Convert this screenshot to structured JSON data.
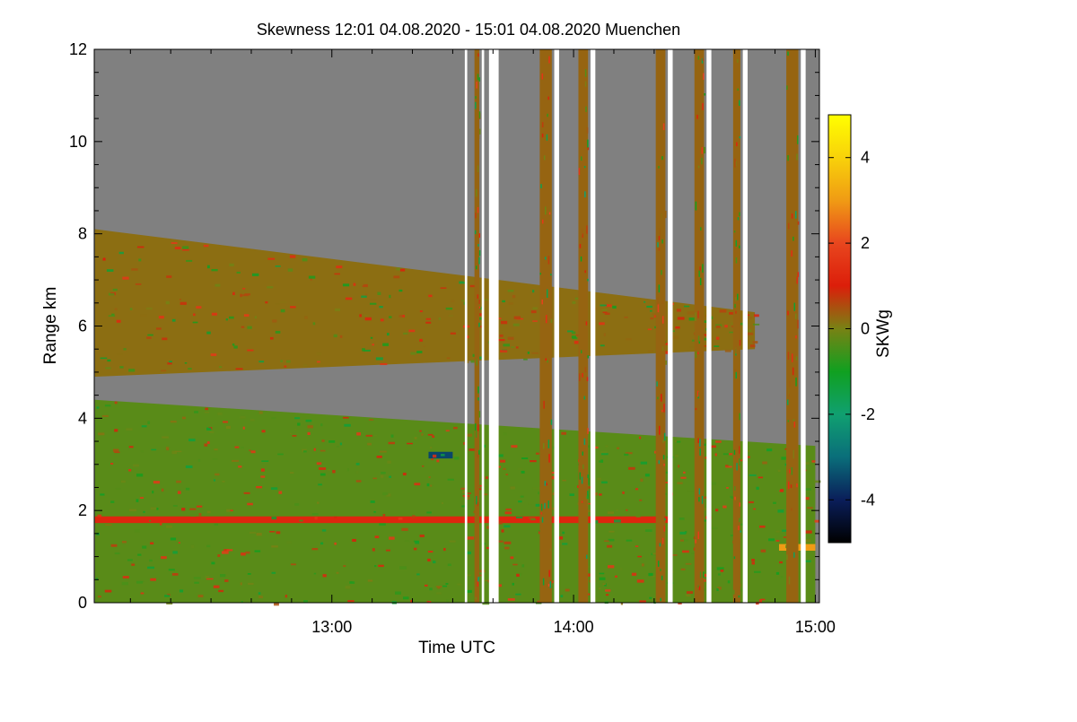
{
  "chart_data": {
    "type": "heatmap",
    "title": "Skewness   12:01 04.08.2020 - 15:01 04.08.2020 Muenchen",
    "xlabel": "Time UTC",
    "ylabel": "Range km",
    "x_range_hours": [
      12.017,
      15.017
    ],
    "y_range_km": [
      0,
      12
    ],
    "x_ticks": [
      {
        "value": 13.0,
        "label": "13:00"
      },
      {
        "value": 14.0,
        "label": "14:00"
      },
      {
        "value": 15.0,
        "label": "15:00"
      }
    ],
    "y_ticks": [
      {
        "value": 0,
        "label": "0"
      },
      {
        "value": 2,
        "label": "2"
      },
      {
        "value": 4,
        "label": "4"
      },
      {
        "value": 6,
        "label": "6"
      },
      {
        "value": 8,
        "label": "8"
      },
      {
        "value": 10,
        "label": "10"
      },
      {
        "value": 12,
        "label": "12"
      }
    ],
    "colorbar": {
      "label": "SKWg",
      "range": [
        -5,
        5
      ],
      "ticks": [
        {
          "value": 4,
          "label": "4"
        },
        {
          "value": 2,
          "label": "2"
        },
        {
          "value": 0,
          "label": "0"
        },
        {
          "value": -2,
          "label": "-2"
        },
        {
          "value": -4,
          "label": "-4"
        }
      ],
      "colors": [
        {
          "value": -5,
          "color": "#000000"
        },
        {
          "value": -4,
          "color": "#0a1e5a"
        },
        {
          "value": -3,
          "color": "#0a6e7a"
        },
        {
          "value": -2,
          "color": "#10a070"
        },
        {
          "value": -1,
          "color": "#10a020"
        },
        {
          "value": 0,
          "color": "#788214"
        },
        {
          "value": 1,
          "color": "#dc1e0a"
        },
        {
          "value": 2,
          "color": "#e8461e"
        },
        {
          "value": 3,
          "color": "#f09b14"
        },
        {
          "value": 4,
          "color": "#f8d20a"
        },
        {
          "value": 5,
          "color": "#ffff00"
        }
      ]
    },
    "no_data_color": "#808080",
    "regions": [
      {
        "name": "boundary-layer",
        "x": [
          12.02,
          15.0
        ],
        "y_bottom": 0.0,
        "y_top_start": 4.4,
        "y_top_end": 3.4,
        "mean_skewness": -0.3
      },
      {
        "name": "lower-cloud-band",
        "x": [
          12.02,
          14.75
        ],
        "y_bottom_start": 4.9,
        "y_bottom_end": 5.5,
        "y_top_start": 8.1,
        "y_top_end": 6.3,
        "mean_skewness": 0.2
      },
      {
        "name": "red-layer-1.8km",
        "x": [
          12.02,
          14.4
        ],
        "y": 1.8,
        "mean_skewness": 1.2
      },
      {
        "name": "blue-patch",
        "x": [
          13.4,
          13.5
        ],
        "y": 3.2,
        "mean_skewness": -3.5
      },
      {
        "name": "yellow-patch",
        "x": [
          14.85,
          15.0
        ],
        "y": 1.2,
        "mean_skewness": 3.0
      }
    ],
    "data_gaps": [
      {
        "start": 13.55,
        "end": 13.56
      },
      {
        "start": 13.62,
        "end": 13.63
      },
      {
        "start": 13.65,
        "end": 13.69
      },
      {
        "start": 13.92,
        "end": 13.94
      },
      {
        "start": 14.07,
        "end": 14.09
      },
      {
        "start": 14.39,
        "end": 14.41
      },
      {
        "start": 14.55,
        "end": 14.57
      },
      {
        "start": 14.7,
        "end": 14.72
      },
      {
        "start": 14.94,
        "end": 14.96
      }
    ],
    "precip_columns": [
      {
        "start": 13.59,
        "end": 13.61
      },
      {
        "start": 13.86,
        "end": 13.91
      },
      {
        "start": 14.02,
        "end": 14.06
      },
      {
        "start": 14.34,
        "end": 14.38
      },
      {
        "start": 14.5,
        "end": 14.54
      },
      {
        "start": 14.66,
        "end": 14.69
      },
      {
        "start": 14.88,
        "end": 14.93
      }
    ]
  }
}
